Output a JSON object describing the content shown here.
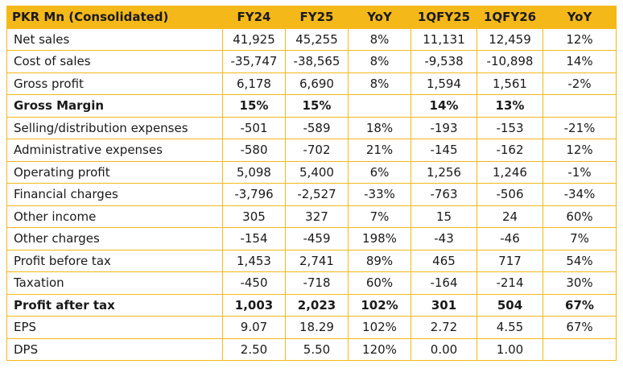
{
  "table": {
    "headers": [
      "PKR Mn (Consolidated)",
      "FY24",
      "FY25",
      "YoY",
      "1QFY25",
      "1QFY26",
      "YoY"
    ],
    "rows": [
      {
        "label": "Net sales",
        "bold": false,
        "cells": [
          "41,925",
          "45,255",
          "8%",
          "11,131",
          "12,459",
          "12%"
        ]
      },
      {
        "label": "Cost of sales",
        "bold": false,
        "cells": [
          "-35,747",
          "-38,565",
          "8%",
          "-9,538",
          "-10,898",
          "14%"
        ]
      },
      {
        "label": "Gross profit",
        "bold": false,
        "cells": [
          "6,178",
          "6,690",
          "8%",
          "1,594",
          "1,561",
          "-2%"
        ]
      },
      {
        "label": "Gross Margin",
        "bold": true,
        "cells": [
          "15%",
          "15%",
          "",
          "14%",
          "13%",
          ""
        ]
      },
      {
        "label": "Selling/distribution expenses",
        "bold": false,
        "cells": [
          "-501",
          "-589",
          "18%",
          "-193",
          "-153",
          "-21%"
        ]
      },
      {
        "label": "Administrative expenses",
        "bold": false,
        "cells": [
          "-580",
          "-702",
          "21%",
          "-145",
          "-162",
          "12%"
        ]
      },
      {
        "label": "Operating profit",
        "bold": false,
        "cells": [
          "5,098",
          "5,400",
          "6%",
          "1,256",
          "1,246",
          "-1%"
        ]
      },
      {
        "label": "Financial charges",
        "bold": false,
        "cells": [
          "-3,796",
          "-2,527",
          "-33%",
          "-763",
          "-506",
          "-34%"
        ]
      },
      {
        "label": "Other income",
        "bold": false,
        "cells": [
          "305",
          "327",
          "7%",
          "15",
          "24",
          "60%"
        ]
      },
      {
        "label": "Other charges",
        "bold": false,
        "cells": [
          "-154",
          "-459",
          "198%",
          "-43",
          "-46",
          "7%"
        ]
      },
      {
        "label": "Profit before tax",
        "bold": false,
        "cells": [
          "1,453",
          "2,741",
          "89%",
          "465",
          "717",
          "54%"
        ]
      },
      {
        "label": "Taxation",
        "bold": false,
        "cells": [
          "-450",
          "-718",
          "60%",
          "-164",
          "-214",
          "30%"
        ]
      },
      {
        "label": "Profit after tax",
        "bold": true,
        "cells": [
          "1,003",
          "2,023",
          "102%",
          "301",
          "504",
          "67%"
        ]
      },
      {
        "label": "EPS",
        "bold": false,
        "cells": [
          "9.07",
          "18.29",
          "102%",
          "2.72",
          "4.55",
          "67%"
        ]
      },
      {
        "label": "DPS",
        "bold": false,
        "cells": [
          "2.50",
          "5.50",
          "120%",
          "0.00",
          "1.00",
          ""
        ]
      }
    ]
  },
  "colors": {
    "header_bg": "#f4b819",
    "border": "#f4b819",
    "text": "#1a1a1a"
  }
}
